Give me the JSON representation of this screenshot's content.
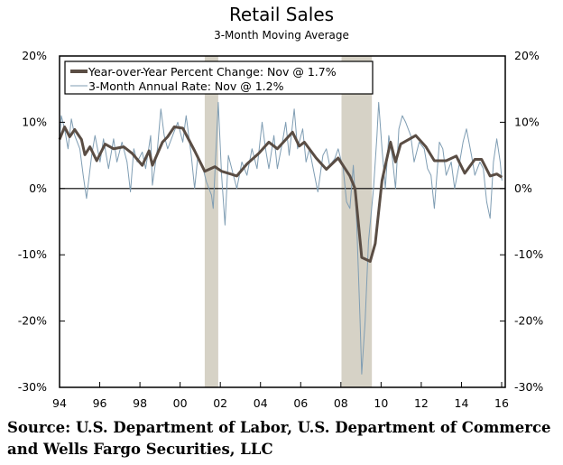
{
  "chart_data": {
    "type": "line",
    "title": "Retail Sales",
    "subtitle": "3-Month Moving Average",
    "xlabel": "",
    "ylabel": "",
    "xlim": [
      "1994-01",
      "2016-01"
    ],
    "x_tick_labels": [
      "94",
      "96",
      "98",
      "00",
      "02",
      "04",
      "06",
      "08",
      "10",
      "12",
      "14",
      "16"
    ],
    "ylim": [
      -30,
      20
    ],
    "y_tick_labels_left": [
      "20%",
      "10%",
      "0%",
      "-10%",
      "-20%",
      "-30%"
    ],
    "y_tick_labels_right": [
      "20%",
      "10%",
      "0%",
      "-10%",
      "-20%",
      "-30%"
    ],
    "y_ticks": [
      20,
      10,
      0,
      -10,
      -20,
      -30
    ],
    "grid": false,
    "zero_line": true,
    "legend_position": "top-left",
    "recession_shading": [
      {
        "start": "2001-03",
        "end": "2001-11"
      },
      {
        "start": "2007-12",
        "end": "2009-06"
      }
    ],
    "shading_color": "#d6d2c6",
    "series": [
      {
        "name": "Year-over-Year Percent Change: Nov @ 1.7%",
        "color": "#5a4d44",
        "points": [
          [
            "1994-01",
            7.4
          ],
          [
            "1994-04",
            9.3
          ],
          [
            "1994-07",
            7.8
          ],
          [
            "1994-10",
            8.9
          ],
          [
            "1995-02",
            7.4
          ],
          [
            "1995-04",
            5.1
          ],
          [
            "1995-07",
            6.3
          ],
          [
            "1995-11",
            4.2
          ],
          [
            "1996-04",
            6.7
          ],
          [
            "1996-09",
            6.0
          ],
          [
            "1997-03",
            6.3
          ],
          [
            "1997-08",
            5.3
          ],
          [
            "1998-02",
            3.5
          ],
          [
            "1998-06",
            5.7
          ],
          [
            "1998-08",
            3.5
          ],
          [
            "1999-02",
            7.0
          ],
          [
            "1999-05",
            7.8
          ],
          [
            "1999-09",
            9.3
          ],
          [
            "2000-02",
            9.1
          ],
          [
            "2000-09",
            5.7
          ],
          [
            "2001-03",
            2.6
          ],
          [
            "2001-09",
            3.3
          ],
          [
            "2002-01",
            2.6
          ],
          [
            "2002-05",
            2.3
          ],
          [
            "2002-10",
            1.9
          ],
          [
            "2003-04",
            3.7
          ],
          [
            "2003-11",
            5.3
          ],
          [
            "2004-05",
            7.0
          ],
          [
            "2004-10",
            6.0
          ],
          [
            "2005-07",
            8.5
          ],
          [
            "2005-11",
            6.4
          ],
          [
            "2006-02",
            7.0
          ],
          [
            "2006-09",
            4.6
          ],
          [
            "2007-03",
            2.9
          ],
          [
            "2007-10",
            4.6
          ],
          [
            "2008-05",
            1.9
          ],
          [
            "2008-08",
            0.0
          ],
          [
            "2008-12",
            -10.4
          ],
          [
            "2009-05",
            -11.0
          ],
          [
            "2009-08",
            -8.3
          ],
          [
            "2009-12",
            1.2
          ],
          [
            "2010-05",
            7.0
          ],
          [
            "2010-08",
            4.0
          ],
          [
            "2010-11",
            6.7
          ],
          [
            "2011-08",
            8.0
          ],
          [
            "2012-02",
            6.3
          ],
          [
            "2012-07",
            4.2
          ],
          [
            "2013-02",
            4.2
          ],
          [
            "2013-08",
            4.9
          ],
          [
            "2014-01",
            2.3
          ],
          [
            "2014-07",
            4.4
          ],
          [
            "2014-11",
            4.4
          ],
          [
            "2015-04",
            1.9
          ],
          [
            "2015-08",
            2.2
          ],
          [
            "2015-11",
            1.7
          ]
        ]
      },
      {
        "name": "3-Month Annual Rate: Nov @ 1.2%",
        "color": "#7f9db3",
        "points": [
          [
            "1994-01",
            7
          ],
          [
            "1994-02",
            11
          ],
          [
            "1994-04",
            9
          ],
          [
            "1994-06",
            6
          ],
          [
            "1994-08",
            10.5
          ],
          [
            "1994-10",
            8
          ],
          [
            "1995-01",
            6
          ],
          [
            "1995-03",
            2
          ],
          [
            "1995-05",
            -1.5
          ],
          [
            "1995-08",
            5
          ],
          [
            "1995-10",
            8
          ],
          [
            "1996-01",
            4
          ],
          [
            "1996-03",
            7.5
          ],
          [
            "1996-06",
            3
          ],
          [
            "1996-09",
            7.5
          ],
          [
            "1996-11",
            4
          ],
          [
            "1997-02",
            7
          ],
          [
            "1997-05",
            4
          ],
          [
            "1997-07",
            -0.5
          ],
          [
            "1997-09",
            6
          ],
          [
            "1997-11",
            4
          ],
          [
            "1998-02",
            5.5
          ],
          [
            "1998-04",
            3
          ],
          [
            "1998-07",
            8
          ],
          [
            "1998-08",
            0.5
          ],
          [
            "1998-11",
            6
          ],
          [
            "1999-01",
            12
          ],
          [
            "1999-03",
            8
          ],
          [
            "1999-05",
            6
          ],
          [
            "1999-08",
            8
          ],
          [
            "1999-11",
            10
          ],
          [
            "2000-02",
            7
          ],
          [
            "2000-04",
            11
          ],
          [
            "2000-07",
            5
          ],
          [
            "2000-09",
            0
          ],
          [
            "2000-11",
            5
          ],
          [
            "2001-02",
            3
          ],
          [
            "2001-04",
            1
          ],
          [
            "2001-07",
            -1
          ],
          [
            "2001-08",
            -3
          ],
          [
            "2001-11",
            13
          ],
          [
            "2002-01",
            2
          ],
          [
            "2002-03",
            -5.5
          ],
          [
            "2002-05",
            5
          ],
          [
            "2002-08",
            2
          ],
          [
            "2002-10",
            0
          ],
          [
            "2003-01",
            4
          ],
          [
            "2003-04",
            2
          ],
          [
            "2003-07",
            6
          ],
          [
            "2003-10",
            3
          ],
          [
            "2004-01",
            10
          ],
          [
            "2004-03",
            6
          ],
          [
            "2004-05",
            3
          ],
          [
            "2004-08",
            8
          ],
          [
            "2004-10",
            3
          ],
          [
            "2005-01",
            7
          ],
          [
            "2005-03",
            10
          ],
          [
            "2005-05",
            5
          ],
          [
            "2005-08",
            12
          ],
          [
            "2005-10",
            6
          ],
          [
            "2006-01",
            9
          ],
          [
            "2006-03",
            4
          ],
          [
            "2006-05",
            6
          ],
          [
            "2006-08",
            2
          ],
          [
            "2006-10",
            -0.5
          ],
          [
            "2007-01",
            5
          ],
          [
            "2007-03",
            6
          ],
          [
            "2007-05",
            3.5
          ],
          [
            "2007-08",
            4.5
          ],
          [
            "2007-10",
            6
          ],
          [
            "2008-01",
            3
          ],
          [
            "2008-03",
            -2
          ],
          [
            "2008-05",
            -3
          ],
          [
            "2008-07",
            3.5
          ],
          [
            "2008-09",
            -5
          ],
          [
            "2008-11",
            -20
          ],
          [
            "2008-12",
            -28
          ],
          [
            "2009-02",
            -20
          ],
          [
            "2009-04",
            -8
          ],
          [
            "2009-07",
            0
          ],
          [
            "2009-09",
            8
          ],
          [
            "2009-10",
            13
          ],
          [
            "2009-12",
            6
          ],
          [
            "2010-02",
            0
          ],
          [
            "2010-04",
            8
          ],
          [
            "2010-06",
            5
          ],
          [
            "2010-08",
            0
          ],
          [
            "2010-10",
            9
          ],
          [
            "2010-12",
            11
          ],
          [
            "2011-02",
            10
          ],
          [
            "2011-05",
            8
          ],
          [
            "2011-07",
            4
          ],
          [
            "2011-10",
            7
          ],
          [
            "2012-01",
            6
          ],
          [
            "2012-03",
            3
          ],
          [
            "2012-05",
            2
          ],
          [
            "2012-07",
            -3
          ],
          [
            "2012-10",
            7
          ],
          [
            "2012-12",
            6
          ],
          [
            "2013-02",
            2
          ],
          [
            "2013-05",
            4
          ],
          [
            "2013-07",
            0
          ],
          [
            "2013-10",
            4
          ],
          [
            "2013-12",
            7
          ],
          [
            "2014-02",
            9
          ],
          [
            "2014-05",
            5
          ],
          [
            "2014-07",
            2
          ],
          [
            "2014-10",
            4
          ],
          [
            "2014-12",
            3
          ],
          [
            "2015-02",
            -2
          ],
          [
            "2015-04",
            -4.5
          ],
          [
            "2015-06",
            4
          ],
          [
            "2015-08",
            7.5
          ],
          [
            "2015-10",
            4
          ],
          [
            "2015-11",
            1.2
          ]
        ]
      }
    ]
  },
  "source": {
    "line1": "Source: U.S. Department of Labor, U.S. Department of Commerce",
    "line2": "and Wells Fargo Securities, LLC"
  }
}
